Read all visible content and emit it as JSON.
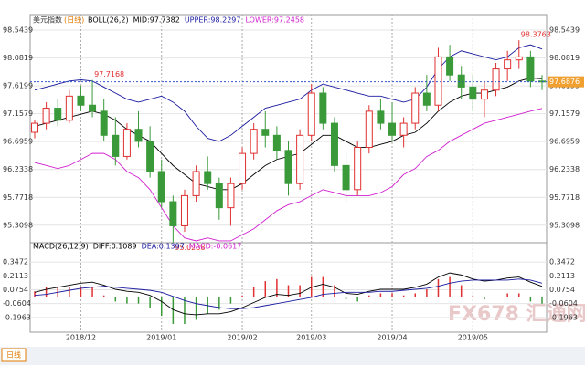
{
  "chart_data": [
    {
      "type": "candlestick",
      "title": "美元指数",
      "period": "(日线)",
      "legend": [
        "BOLL(26,2)",
        "MID:97.7382",
        "UPPER:98.2297",
        "LOWER:97.2458"
      ],
      "legend_colors": [
        "#000000",
        "#000000",
        "#1a1aa0",
        "#d020d0"
      ],
      "categories": [
        null,
        null,
        null,
        null,
        "2018/12",
        null,
        null,
        null,
        null,
        null,
        null,
        "2019/01",
        null,
        null,
        null,
        null,
        null,
        null,
        "2019/02",
        null,
        null,
        null,
        null,
        null,
        "2019/03",
        null,
        null,
        null,
        null,
        null,
        null,
        "2019/04",
        null,
        null,
        null,
        null,
        null,
        null,
        "2019/05",
        null,
        null,
        null,
        null,
        null,
        null
      ],
      "candles": [
        [
          96.85,
          97.05,
          96.75,
          97.0
        ],
        [
          97.0,
          97.35,
          96.9,
          97.25
        ],
        [
          97.25,
          97.4,
          96.95,
          97.05
        ],
        [
          97.05,
          97.55,
          97.0,
          97.45
        ],
        [
          97.45,
          97.62,
          97.2,
          97.3
        ],
        [
          97.3,
          97.7168,
          97.1,
          97.2
        ],
        [
          97.2,
          97.4,
          96.7,
          96.8
        ],
        [
          96.8,
          97.1,
          96.3,
          96.45
        ],
        [
          96.45,
          97.0,
          96.4,
          96.9
        ],
        [
          96.9,
          97.2,
          96.6,
          96.7
        ],
        [
          96.7,
          96.95,
          96.1,
          96.2
        ],
        [
          96.2,
          96.4,
          95.6,
          95.7
        ],
        [
          95.7,
          95.8,
          95.0238,
          95.3
        ],
        [
          95.3,
          95.9,
          95.2,
          95.8
        ],
        [
          95.8,
          96.3,
          95.7,
          96.2
        ],
        [
          96.2,
          96.45,
          95.9,
          96.0
        ],
        [
          96.0,
          96.1,
          95.4,
          95.6
        ],
        [
          95.6,
          96.1,
          95.3,
          96.0
        ],
        [
          96.0,
          96.6,
          95.9,
          96.5
        ],
        [
          96.5,
          97.0,
          96.4,
          96.9
        ],
        [
          96.9,
          97.2,
          96.6,
          96.8
        ],
        [
          96.8,
          96.95,
          96.4,
          96.55
        ],
        [
          96.55,
          96.7,
          95.8,
          96.0
        ],
        [
          96.0,
          96.9,
          95.9,
          96.8
        ],
        [
          96.8,
          97.65,
          96.7,
          97.5
        ],
        [
          97.5,
          97.6,
          96.9,
          97.0
        ],
        [
          97.0,
          97.1,
          96.2,
          96.3
        ],
        [
          96.3,
          96.5,
          95.7,
          95.9
        ],
        [
          95.9,
          96.7,
          95.8,
          96.6
        ],
        [
          96.6,
          97.3,
          96.5,
          97.2
        ],
        [
          97.2,
          97.4,
          96.9,
          97.0
        ],
        [
          97.0,
          97.35,
          96.7,
          96.8
        ],
        [
          96.8,
          97.1,
          96.6,
          97.0
        ],
        [
          97.0,
          97.6,
          96.9,
          97.5
        ],
        [
          97.5,
          97.8,
          97.2,
          97.3
        ],
        [
          97.3,
          98.25,
          97.2,
          98.1
        ],
        [
          98.1,
          98.3,
          97.7,
          97.8
        ],
        [
          97.8,
          97.95,
          97.4,
          97.6
        ],
        [
          97.6,
          97.8,
          97.2,
          97.4
        ],
        [
          97.4,
          97.7,
          97.1,
          97.55
        ],
        [
          97.55,
          98.0,
          97.45,
          97.9
        ],
        [
          97.9,
          98.2,
          97.7,
          98.05
        ],
        [
          98.05,
          98.3763,
          97.9,
          98.1
        ],
        [
          98.1,
          98.2,
          97.6,
          97.7
        ],
        [
          97.7,
          97.8,
          97.55,
          97.6876
        ]
      ],
      "up_color": "#e03030",
      "down_color": "#3a9a3a",
      "mid": [
        96.95,
        97.0,
        97.05,
        97.1,
        97.15,
        97.2,
        97.15,
        97.05,
        96.9,
        96.8,
        96.7,
        96.5,
        96.3,
        96.15,
        96.0,
        95.95,
        95.9,
        95.9,
        96.0,
        96.15,
        96.3,
        96.4,
        96.45,
        96.5,
        96.65,
        96.8,
        96.8,
        96.7,
        96.6,
        96.6,
        96.65,
        96.7,
        96.8,
        96.85,
        97.0,
        97.2,
        97.35,
        97.45,
        97.5,
        97.5,
        97.55,
        97.6,
        97.7,
        97.75,
        97.7382
      ],
      "upper": [
        97.55,
        97.6,
        97.65,
        97.7,
        97.72,
        97.7,
        97.6,
        97.5,
        97.4,
        97.35,
        97.4,
        97.45,
        97.35,
        97.2,
        96.95,
        96.75,
        96.7,
        96.8,
        96.95,
        97.1,
        97.25,
        97.3,
        97.35,
        97.4,
        97.55,
        97.65,
        97.6,
        97.55,
        97.5,
        97.45,
        97.45,
        97.4,
        97.35,
        97.4,
        97.6,
        97.9,
        98.1,
        98.2,
        98.15,
        98.1,
        98.05,
        98.1,
        98.25,
        98.3,
        98.2297
      ],
      "lower": [
        96.35,
        96.3,
        96.25,
        96.3,
        96.4,
        96.5,
        96.5,
        96.4,
        96.2,
        96.1,
        95.9,
        95.6,
        95.3,
        95.1,
        95.05,
        95.1,
        95.05,
        95.05,
        95.15,
        95.25,
        95.4,
        95.55,
        95.65,
        95.7,
        95.8,
        95.9,
        95.85,
        95.8,
        95.8,
        95.8,
        95.85,
        95.95,
        96.15,
        96.25,
        96.45,
        96.55,
        96.7,
        96.8,
        96.9,
        97.0,
        97.05,
        97.1,
        97.15,
        97.2,
        97.2458
      ],
      "annotations": [
        5,
        12,
        42
      ],
      "ylim": [
        95.08,
        98.62
      ],
      "yticks": [
        98.5439,
        98.0819,
        97.6199,
        97.1579,
        96.6959,
        96.2338,
        95.7718,
        95.3098
      ]
    },
    {
      "type": "macd",
      "legend": [
        "MACD(26,12,9)",
        "DIFF:0.1089",
        "DEA:0.1397",
        "MACD:-0.0617"
      ],
      "legend_colors": [
        "#000000",
        "#000000",
        "#1a1aa0",
        "#d020d0"
      ],
      "diff": [
        0.05,
        0.08,
        0.1,
        0.12,
        0.14,
        0.15,
        0.12,
        0.08,
        0.06,
        0.05,
        0.02,
        -0.04,
        -0.12,
        -0.16,
        -0.17,
        -0.16,
        -0.16,
        -0.14,
        -0.1,
        -0.05,
        0.0,
        0.03,
        0.02,
        0.04,
        0.1,
        0.13,
        0.1,
        0.04,
        0.03,
        0.06,
        0.08,
        0.08,
        0.08,
        0.1,
        0.13,
        0.2,
        0.24,
        0.22,
        0.18,
        0.16,
        0.17,
        0.19,
        0.2,
        0.15,
        0.1089
      ],
      "dea": [
        0.02,
        0.03,
        0.05,
        0.07,
        0.09,
        0.1,
        0.11,
        0.1,
        0.09,
        0.08,
        0.07,
        0.05,
        0.01,
        -0.03,
        -0.06,
        -0.08,
        -0.1,
        -0.11,
        -0.11,
        -0.1,
        -0.08,
        -0.06,
        -0.04,
        -0.02,
        0.0,
        0.03,
        0.04,
        0.05,
        0.05,
        0.05,
        0.06,
        0.06,
        0.07,
        0.08,
        0.09,
        0.11,
        0.14,
        0.16,
        0.17,
        0.17,
        0.17,
        0.17,
        0.18,
        0.17,
        0.1397
      ],
      "macd": [
        0.06,
        0.1,
        0.1,
        0.1,
        0.1,
        0.1,
        0.02,
        -0.04,
        -0.06,
        -0.06,
        -0.1,
        -0.18,
        -0.26,
        -0.26,
        -0.22,
        -0.16,
        -0.12,
        -0.06,
        0.02,
        0.1,
        0.16,
        0.18,
        0.12,
        0.12,
        0.2,
        0.2,
        0.12,
        -0.02,
        -0.04,
        0.02,
        0.04,
        0.04,
        0.02,
        0.04,
        0.08,
        0.18,
        0.2,
        0.12,
        0.02,
        -0.02,
        0.0,
        0.04,
        0.04,
        -0.04,
        -0.0617
      ],
      "ylim": [
        -0.305,
        0.483
      ],
      "yticks": [
        0.3472,
        0.2113,
        0.0754,
        -0.0604,
        -0.1963
      ]
    }
  ],
  "period_button": "日线",
  "watermark": "FX678 汇通网"
}
